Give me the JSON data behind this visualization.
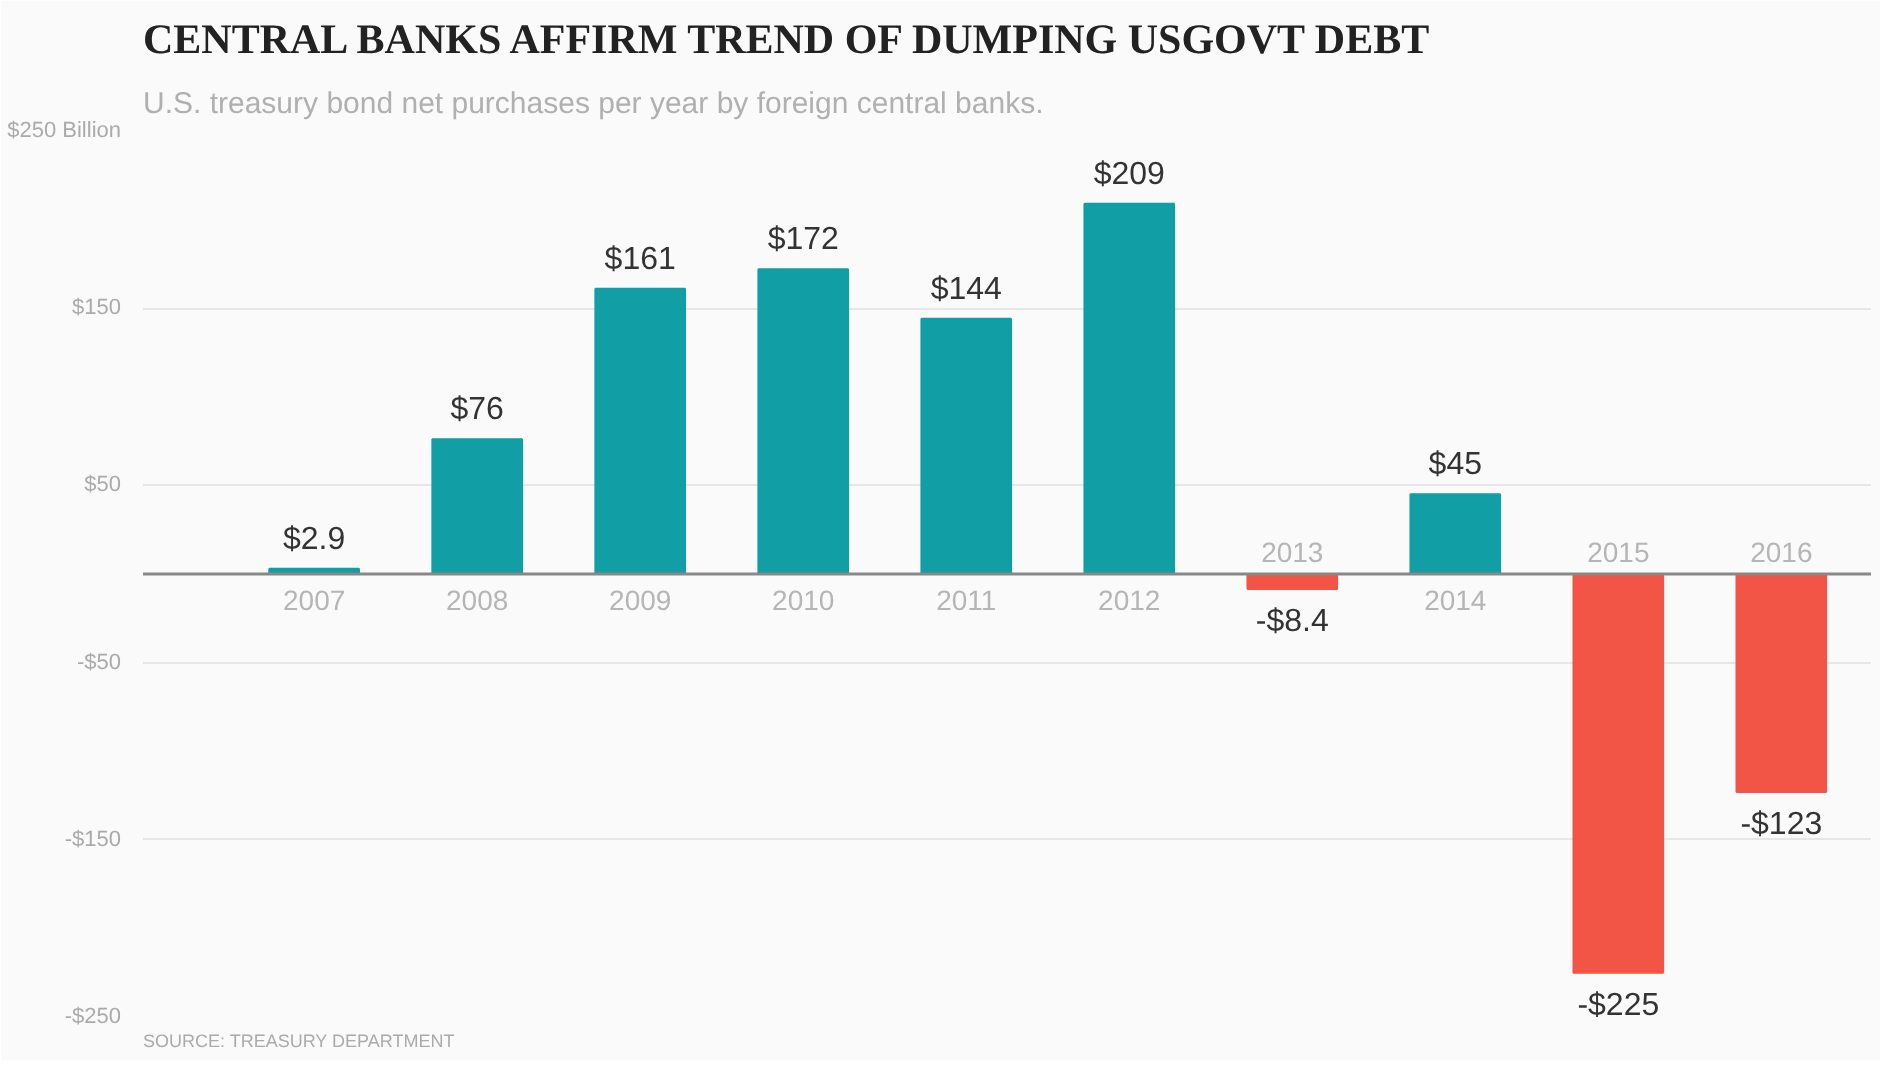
{
  "chart_data": {
    "type": "bar",
    "title": "CENTRAL BANKS AFFIRM TREND OF DUMPING USGOVT DEBT",
    "subtitle": "U.S. treasury bond net purchases per year by foreign central banks.",
    "annotations": [
      "SOURCE: TREASURY DEPARTMENT"
    ],
    "categories": [
      "2007",
      "2008",
      "2009",
      "2010",
      "2011",
      "2012",
      "2013",
      "2014",
      "2015",
      "2016"
    ],
    "values": [
      2.9,
      76,
      161,
      172,
      144,
      209,
      -8.4,
      45,
      -225,
      -123
    ],
    "value_labels": [
      "$2.9",
      "$76",
      "$161",
      "$172",
      "$144",
      "$209",
      "-$8.4",
      "$45",
      "-$225",
      "-$123"
    ],
    "colors": [
      "#119ea4",
      "#119ea4",
      "#119ea4",
      "#119ea4",
      "#119ea4",
      "#119ea4",
      "#f25545",
      "#119ea4",
      "#f25545",
      "#f25545"
    ],
    "ylim": [
      -250,
      250
    ],
    "yticks": [
      {
        "value": 250,
        "label": "$250 Billion"
      },
      {
        "value": 150,
        "label": "$150"
      },
      {
        "value": 50,
        "label": "$50"
      },
      {
        "value": -50,
        "label": "-$50"
      },
      {
        "value": -150,
        "label": "-$150"
      },
      {
        "value": -250,
        "label": "-$250"
      }
    ],
    "grid": "y"
  }
}
